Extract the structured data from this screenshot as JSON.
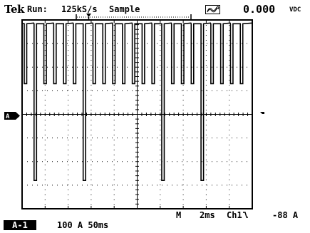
{
  "header": {
    "brand": "Tek",
    "run_label": "Run:",
    "sample_rate": "125kS/s",
    "acquisition_mode": "Sample",
    "acquisition_icon": "averaging-wave-icon",
    "reading_value": "0.000",
    "reading_unit": "VDC"
  },
  "channel_marker": "A",
  "footer": {
    "channel_badge": "A-1",
    "channel_scale": "100 A  50ms",
    "m_label": "M",
    "timebase": "2ms",
    "trigger_source": "Ch1",
    "trigger_slope_icon": "falling-edge-icon",
    "trigger_level": "-88 A"
  },
  "trace": {
    "baseline_div": 3.9,
    "deep_pulse_level_div": -2.8,
    "shallow_pulse_level_div": 1.3,
    "color": "#000000"
  },
  "colors": {
    "background": "#ffffff",
    "graticule": "#000000",
    "badge_background": "#000000",
    "badge_text": "#ffffff"
  }
}
